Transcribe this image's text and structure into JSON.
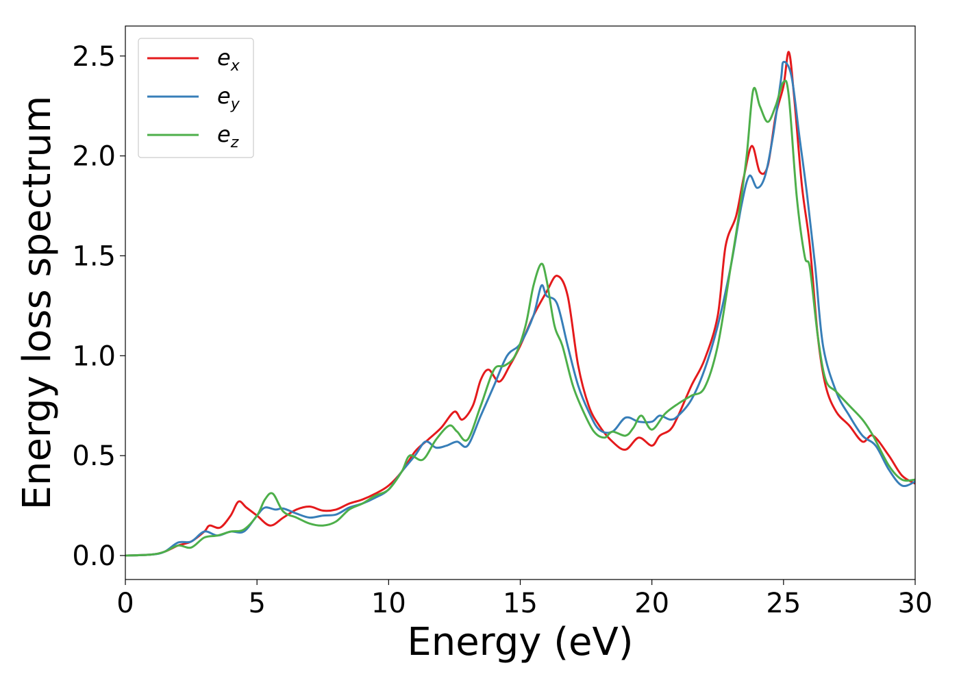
{
  "chart_data": {
    "type": "line",
    "xlabel": "Energy (eV)",
    "ylabel": "Energy loss spectrum",
    "xlim": [
      0,
      30
    ],
    "ylim": [
      -0.12,
      2.65
    ],
    "xticks": [
      0,
      5,
      10,
      15,
      20,
      25,
      30
    ],
    "xtick_labels": [
      "0",
      "5",
      "10",
      "15",
      "20",
      "25",
      "30"
    ],
    "yticks": [
      0.0,
      0.5,
      1.0,
      1.5,
      2.0,
      2.5
    ],
    "ytick_labels": [
      "0.0",
      "0.5",
      "1.0",
      "1.5",
      "2.0",
      "2.5"
    ],
    "grid": false,
    "legend_position": "top-left",
    "series": [
      {
        "name": "e_x",
        "label_main": "e",
        "label_sub": "x",
        "color": "#e41a1c",
        "points": [
          [
            0,
            0
          ],
          [
            1,
            0.005
          ],
          [
            1.5,
            0.02
          ],
          [
            2,
            0.05
          ],
          [
            2.5,
            0.07
          ],
          [
            3,
            0.12
          ],
          [
            3.2,
            0.15
          ],
          [
            3.6,
            0.14
          ],
          [
            4,
            0.2
          ],
          [
            4.3,
            0.27
          ],
          [
            4.6,
            0.24
          ],
          [
            5,
            0.2
          ],
          [
            5.5,
            0.15
          ],
          [
            6,
            0.19
          ],
          [
            6.5,
            0.23
          ],
          [
            7,
            0.245
          ],
          [
            7.5,
            0.225
          ],
          [
            8,
            0.23
          ],
          [
            8.5,
            0.26
          ],
          [
            9,
            0.28
          ],
          [
            9.5,
            0.31
          ],
          [
            10,
            0.35
          ],
          [
            10.5,
            0.42
          ],
          [
            11,
            0.52
          ],
          [
            11.5,
            0.58
          ],
          [
            12,
            0.64
          ],
          [
            12.5,
            0.72
          ],
          [
            12.8,
            0.68
          ],
          [
            13.2,
            0.75
          ],
          [
            13.5,
            0.88
          ],
          [
            13.8,
            0.93
          ],
          [
            14.2,
            0.87
          ],
          [
            14.6,
            0.95
          ],
          [
            15,
            1.05
          ],
          [
            15.5,
            1.2
          ],
          [
            16,
            1.32
          ],
          [
            16.4,
            1.4
          ],
          [
            16.8,
            1.3
          ],
          [
            17.2,
            0.95
          ],
          [
            17.6,
            0.75
          ],
          [
            18,
            0.65
          ],
          [
            18.5,
            0.57
          ],
          [
            19,
            0.53
          ],
          [
            19.5,
            0.59
          ],
          [
            20,
            0.55
          ],
          [
            20.3,
            0.6
          ],
          [
            20.7,
            0.63
          ],
          [
            21,
            0.7
          ],
          [
            21.5,
            0.85
          ],
          [
            22,
            0.98
          ],
          [
            22.5,
            1.2
          ],
          [
            22.8,
            1.55
          ],
          [
            23.2,
            1.7
          ],
          [
            23.5,
            1.9
          ],
          [
            23.8,
            2.05
          ],
          [
            24.1,
            1.92
          ],
          [
            24.4,
            1.95
          ],
          [
            24.7,
            2.2
          ],
          [
            25,
            2.35
          ],
          [
            25.2,
            2.52
          ],
          [
            25.4,
            2.3
          ],
          [
            25.7,
            1.85
          ],
          [
            26,
            1.55
          ],
          [
            26.3,
            1.1
          ],
          [
            26.6,
            0.85
          ],
          [
            27,
            0.72
          ],
          [
            27.5,
            0.65
          ],
          [
            28,
            0.57
          ],
          [
            28.4,
            0.6
          ],
          [
            29,
            0.5
          ],
          [
            29.5,
            0.4
          ],
          [
            30,
            0.36
          ]
        ]
      },
      {
        "name": "e_y",
        "label_main": "e",
        "label_sub": "y",
        "color": "#377eb8",
        "points": [
          [
            0,
            0
          ],
          [
            1,
            0.005
          ],
          [
            1.5,
            0.02
          ],
          [
            2,
            0.065
          ],
          [
            2.5,
            0.07
          ],
          [
            3,
            0.12
          ],
          [
            3.5,
            0.1
          ],
          [
            4,
            0.12
          ],
          [
            4.5,
            0.12
          ],
          [
            5,
            0.2
          ],
          [
            5.3,
            0.24
          ],
          [
            5.7,
            0.23
          ],
          [
            6,
            0.235
          ],
          [
            6.5,
            0.21
          ],
          [
            7,
            0.19
          ],
          [
            7.5,
            0.2
          ],
          [
            8,
            0.205
          ],
          [
            8.5,
            0.24
          ],
          [
            9,
            0.26
          ],
          [
            9.5,
            0.29
          ],
          [
            10,
            0.33
          ],
          [
            10.5,
            0.42
          ],
          [
            11,
            0.5
          ],
          [
            11.4,
            0.57
          ],
          [
            11.8,
            0.54
          ],
          [
            12.2,
            0.55
          ],
          [
            12.6,
            0.57
          ],
          [
            13,
            0.55
          ],
          [
            13.5,
            0.7
          ],
          [
            14,
            0.85
          ],
          [
            14.5,
            1.0
          ],
          [
            15,
            1.06
          ],
          [
            15.5,
            1.2
          ],
          [
            15.8,
            1.35
          ],
          [
            16,
            1.3
          ],
          [
            16.4,
            1.26
          ],
          [
            16.8,
            1.05
          ],
          [
            17.2,
            0.85
          ],
          [
            17.6,
            0.72
          ],
          [
            18,
            0.63
          ],
          [
            18.5,
            0.62
          ],
          [
            19,
            0.69
          ],
          [
            19.5,
            0.67
          ],
          [
            20,
            0.67
          ],
          [
            20.3,
            0.7
          ],
          [
            20.7,
            0.68
          ],
          [
            21,
            0.7
          ],
          [
            21.5,
            0.78
          ],
          [
            22,
            0.93
          ],
          [
            22.5,
            1.15
          ],
          [
            23,
            1.45
          ],
          [
            23.4,
            1.75
          ],
          [
            23.7,
            1.9
          ],
          [
            24,
            1.84
          ],
          [
            24.3,
            1.9
          ],
          [
            24.6,
            2.1
          ],
          [
            24.9,
            2.38
          ],
          [
            25,
            2.47
          ],
          [
            25.3,
            2.4
          ],
          [
            25.6,
            2.1
          ],
          [
            25.9,
            1.8
          ],
          [
            26.2,
            1.45
          ],
          [
            26.5,
            1.05
          ],
          [
            27,
            0.82
          ],
          [
            27.5,
            0.7
          ],
          [
            28,
            0.6
          ],
          [
            28.5,
            0.55
          ],
          [
            29,
            0.43
          ],
          [
            29.5,
            0.35
          ],
          [
            30,
            0.37
          ]
        ]
      },
      {
        "name": "e_z",
        "label_main": "e",
        "label_sub": "z",
        "color": "#4daf4a",
        "points": [
          [
            0,
            0
          ],
          [
            1,
            0.005
          ],
          [
            1.5,
            0.02
          ],
          [
            2,
            0.05
          ],
          [
            2.5,
            0.04
          ],
          [
            3,
            0.09
          ],
          [
            3.5,
            0.1
          ],
          [
            4,
            0.12
          ],
          [
            4.5,
            0.13
          ],
          [
            5,
            0.2
          ],
          [
            5.3,
            0.28
          ],
          [
            5.6,
            0.31
          ],
          [
            6,
            0.22
          ],
          [
            6.5,
            0.19
          ],
          [
            7,
            0.16
          ],
          [
            7.5,
            0.15
          ],
          [
            8,
            0.17
          ],
          [
            8.5,
            0.23
          ],
          [
            9,
            0.26
          ],
          [
            9.5,
            0.3
          ],
          [
            10,
            0.33
          ],
          [
            10.5,
            0.42
          ],
          [
            10.8,
            0.5
          ],
          [
            11.3,
            0.48
          ],
          [
            11.8,
            0.58
          ],
          [
            12.3,
            0.65
          ],
          [
            12.6,
            0.62
          ],
          [
            13,
            0.58
          ],
          [
            13.5,
            0.75
          ],
          [
            14,
            0.93
          ],
          [
            14.4,
            0.95
          ],
          [
            14.8,
            1.0
          ],
          [
            15.2,
            1.15
          ],
          [
            15.5,
            1.35
          ],
          [
            15.8,
            1.46
          ],
          [
            16,
            1.38
          ],
          [
            16.3,
            1.15
          ],
          [
            16.6,
            1.05
          ],
          [
            17,
            0.85
          ],
          [
            17.4,
            0.72
          ],
          [
            17.8,
            0.62
          ],
          [
            18.2,
            0.59
          ],
          [
            18.5,
            0.62
          ],
          [
            19,
            0.6
          ],
          [
            19.3,
            0.64
          ],
          [
            19.6,
            0.7
          ],
          [
            20,
            0.63
          ],
          [
            20.5,
            0.71
          ],
          [
            21,
            0.76
          ],
          [
            21.5,
            0.8
          ],
          [
            22,
            0.84
          ],
          [
            22.5,
            1.05
          ],
          [
            23,
            1.45
          ],
          [
            23.3,
            1.7
          ],
          [
            23.6,
            2.0
          ],
          [
            23.85,
            2.33
          ],
          [
            24.1,
            2.25
          ],
          [
            24.4,
            2.17
          ],
          [
            24.7,
            2.25
          ],
          [
            25,
            2.37
          ],
          [
            25.2,
            2.3
          ],
          [
            25.5,
            1.8
          ],
          [
            25.8,
            1.5
          ],
          [
            26,
            1.44
          ],
          [
            26.3,
            1.1
          ],
          [
            26.6,
            0.88
          ],
          [
            27,
            0.82
          ],
          [
            27.5,
            0.75
          ],
          [
            28,
            0.68
          ],
          [
            28.4,
            0.6
          ],
          [
            29,
            0.45
          ],
          [
            29.5,
            0.38
          ],
          [
            30,
            0.38
          ]
        ]
      }
    ]
  }
}
